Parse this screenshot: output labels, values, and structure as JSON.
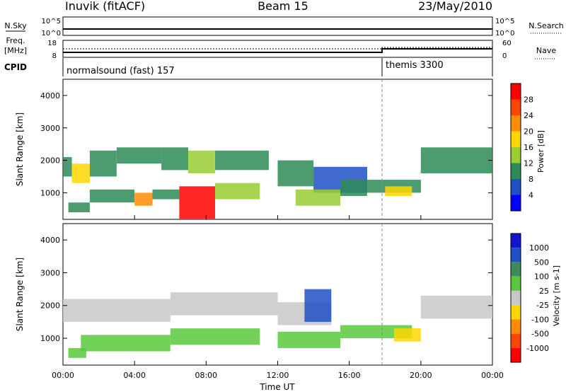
{
  "header": {
    "station": "Inuvik (fitACF)",
    "beam": "Beam 15",
    "date": "23/May/2010"
  },
  "left_labels": {
    "nsky": "N.Sky",
    "freq": "Freq.",
    "freq_unit": "[MHz]",
    "cpid": "CPID"
  },
  "right_labels": {
    "nsearch": "N.Search",
    "nave": "Nave"
  },
  "strip_ticks": {
    "nsky_left": [
      "10^5",
      "10^0"
    ],
    "nsky_right": [
      "10^5",
      "10^0"
    ],
    "freq_left": [
      "18",
      "8"
    ],
    "freq_right": [
      "60",
      "0"
    ]
  },
  "cpid_segments": [
    {
      "name": "normalsound (fast) 157",
      "start_hour": 0
    },
    {
      "name": "themis 3300",
      "start_hour": 18
    }
  ],
  "colors": {
    "power_scale": [
      "#0000ff",
      "#1e50c8",
      "#2e8b57",
      "#9acd32",
      "#ffd700",
      "#ff8c00",
      "#ff4500",
      "#ff0000"
    ],
    "velocity_scale": [
      "#1515d0",
      "#1e50c8",
      "#3c8c5a",
      "#5ac83c",
      "#c8c8c8",
      "#ffd700",
      "#ff8c00",
      "#ff4500",
      "#ff0000"
    ]
  },
  "chart_data": [
    {
      "type": "heatmap",
      "name": "power",
      "xlabel": "",
      "ylabel": "Slant Range [km]",
      "xlim": [
        0,
        24
      ],
      "ylim": [
        180,
        4500
      ],
      "yticks": [
        1000,
        2000,
        3000,
        4000
      ],
      "colorbar": {
        "label": "Power [dB]",
        "ticks": [
          "28",
          "24",
          "20",
          "16",
          "12",
          "8",
          "4"
        ],
        "range": [
          0,
          32
        ]
      },
      "bands": [
        {
          "x0": 0.0,
          "x1": 0.5,
          "y0": 1500,
          "y1": 2100,
          "value": 8
        },
        {
          "x0": 0.5,
          "x1": 1.5,
          "y0": 1300,
          "y1": 1900,
          "value": 18
        },
        {
          "x0": 1.5,
          "x1": 3.0,
          "y0": 1500,
          "y1": 2300,
          "value": 10
        },
        {
          "x0": 3.0,
          "x1": 5.5,
          "y0": 1900,
          "y1": 2400,
          "value": 8
        },
        {
          "x0": 5.5,
          "x1": 7.0,
          "y0": 1700,
          "y1": 2400,
          "value": 8
        },
        {
          "x0": 7.0,
          "x1": 8.5,
          "y0": 1600,
          "y1": 2300,
          "value": 14
        },
        {
          "x0": 8.5,
          "x1": 11.5,
          "y0": 1700,
          "y1": 2300,
          "value": 8
        },
        {
          "x0": 12.0,
          "x1": 14.0,
          "y0": 1200,
          "y1": 2000,
          "value": 8
        },
        {
          "x0": 14.0,
          "x1": 17.0,
          "y0": 1000,
          "y1": 1800,
          "value": 6
        },
        {
          "x0": 17.0,
          "x1": 20.0,
          "y0": 1000,
          "y1": 1400,
          "value": 8
        },
        {
          "x0": 20.0,
          "x1": 24.0,
          "y0": 1600,
          "y1": 2400,
          "value": 8
        },
        {
          "x0": 0.3,
          "x1": 1.5,
          "y0": 400,
          "y1": 700,
          "value": 8
        },
        {
          "x0": 1.5,
          "x1": 4.0,
          "y0": 700,
          "y1": 1100,
          "value": 10
        },
        {
          "x0": 4.0,
          "x1": 5.0,
          "y0": 600,
          "y1": 1000,
          "value": 22
        },
        {
          "x0": 5.0,
          "x1": 6.5,
          "y0": 800,
          "y1": 1100,
          "value": 8
        },
        {
          "x0": 6.5,
          "x1": 8.5,
          "y0": 200,
          "y1": 1200,
          "value": 28
        },
        {
          "x0": 8.5,
          "x1": 11.0,
          "y0": 800,
          "y1": 1300,
          "value": 14
        },
        {
          "x0": 13.0,
          "x1": 15.5,
          "y0": 600,
          "y1": 1100,
          "value": 14
        },
        {
          "x0": 15.5,
          "x1": 17.0,
          "y0": 900,
          "y1": 1400,
          "value": 10
        },
        {
          "x0": 18.0,
          "x1": 19.5,
          "y0": 900,
          "y1": 1200,
          "value": 16
        }
      ]
    },
    {
      "type": "heatmap",
      "name": "velocity",
      "xlabel": "Time UT",
      "ylabel": "Slant Range [km]",
      "xlim": [
        0,
        24
      ],
      "ylim": [
        180,
        4500
      ],
      "xticks": [
        "00:00",
        "04:00",
        "08:00",
        "12:00",
        "16:00",
        "20:00",
        "00:00"
      ],
      "yticks": [
        1000,
        2000,
        3000,
        4000
      ],
      "colorbar": {
        "label": "Velocity [m s-1]",
        "ticks": [
          "1000",
          "500",
          "100",
          "25",
          "-25",
          "-100",
          "-500",
          "-1000"
        ],
        "range": [
          -1200,
          1200
        ]
      },
      "bands": [
        {
          "x0": 0.0,
          "x1": 6.0,
          "y0": 1500,
          "y1": 2200,
          "value": 0
        },
        {
          "x0": 6.0,
          "x1": 12.0,
          "y0": 1700,
          "y1": 2400,
          "value": 0
        },
        {
          "x0": 12.0,
          "x1": 15.0,
          "y0": 1400,
          "y1": 2100,
          "value": 0
        },
        {
          "x0": 20.0,
          "x1": 24.0,
          "y0": 1600,
          "y1": 2300,
          "value": 0
        },
        {
          "x0": 1.0,
          "x1": 6.0,
          "y0": 600,
          "y1": 1100,
          "value": 250
        },
        {
          "x0": 6.0,
          "x1": 11.0,
          "y0": 800,
          "y1": 1300,
          "value": 250
        },
        {
          "x0": 12.0,
          "x1": 15.5,
          "y0": 700,
          "y1": 1200,
          "value": 250
        },
        {
          "x0": 15.5,
          "x1": 19.5,
          "y0": 1000,
          "y1": 1400,
          "value": 150
        },
        {
          "x0": 13.5,
          "x1": 15.0,
          "y0": 1500,
          "y1": 2500,
          "value": 700
        },
        {
          "x0": 18.5,
          "x1": 20.0,
          "y0": 900,
          "y1": 1300,
          "value": -300
        },
        {
          "x0": 0.3,
          "x1": 1.3,
          "y0": 400,
          "y1": 700,
          "value": 250
        }
      ]
    }
  ]
}
